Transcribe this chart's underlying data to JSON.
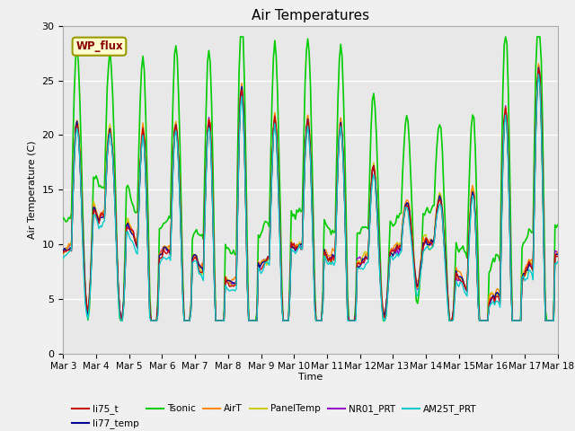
{
  "title": "Air Temperatures",
  "xlabel": "Time",
  "ylabel": "Air Temperature (C)",
  "ylim": [
    0,
    30
  ],
  "xlim": [
    0,
    360
  ],
  "background_color": "#e8e8e8",
  "fig_background": "#f0f0f0",
  "series": {
    "li75_t": {
      "color": "#cc0000",
      "lw": 1.0,
      "zorder": 4
    },
    "li77_temp": {
      "color": "#000099",
      "lw": 1.0,
      "zorder": 4
    },
    "Tsonic": {
      "color": "#00cc00",
      "lw": 1.2,
      "zorder": 3
    },
    "AirT": {
      "color": "#ff8800",
      "lw": 1.0,
      "zorder": 4
    },
    "PanelTemp": {
      "color": "#cccc00",
      "lw": 1.0,
      "zorder": 4
    },
    "NR01_PRT": {
      "color": "#9900cc",
      "lw": 1.0,
      "zorder": 4
    },
    "AM25T_PRT": {
      "color": "#00cccc",
      "lw": 1.0,
      "zorder": 5
    }
  },
  "xtick_labels": [
    "Mar 3",
    "Mar 4",
    "Mar 5",
    "Mar 6",
    "Mar 7",
    "Mar 8",
    "Mar 9",
    "Mar 10",
    "Mar 11",
    "Mar 12",
    "Mar 13",
    "Mar 14",
    "Mar 15",
    "Mar 16",
    "Mar 17",
    "Mar 18"
  ],
  "xtick_positions": [
    0,
    24,
    48,
    72,
    96,
    120,
    144,
    168,
    192,
    216,
    240,
    264,
    288,
    312,
    336,
    360
  ],
  "ytick_positions": [
    0,
    5,
    10,
    15,
    20,
    25,
    30
  ],
  "ytick_labels": [
    "0",
    "5",
    "10",
    "15",
    "20",
    "25",
    "30"
  ],
  "wp_flux_label": "WP_flux",
  "legend_entries": [
    {
      "label": "li75_t",
      "color": "#cc0000"
    },
    {
      "label": "li77_temp",
      "color": "#000099"
    },
    {
      "label": "Tsonic",
      "color": "#00cc00"
    },
    {
      "label": "AirT",
      "color": "#ff8800"
    },
    {
      "label": "PanelTemp",
      "color": "#cccc00"
    },
    {
      "label": "NR01_PRT",
      "color": "#9900cc"
    },
    {
      "label": "AM25T_PRT",
      "color": "#00cccc"
    }
  ]
}
